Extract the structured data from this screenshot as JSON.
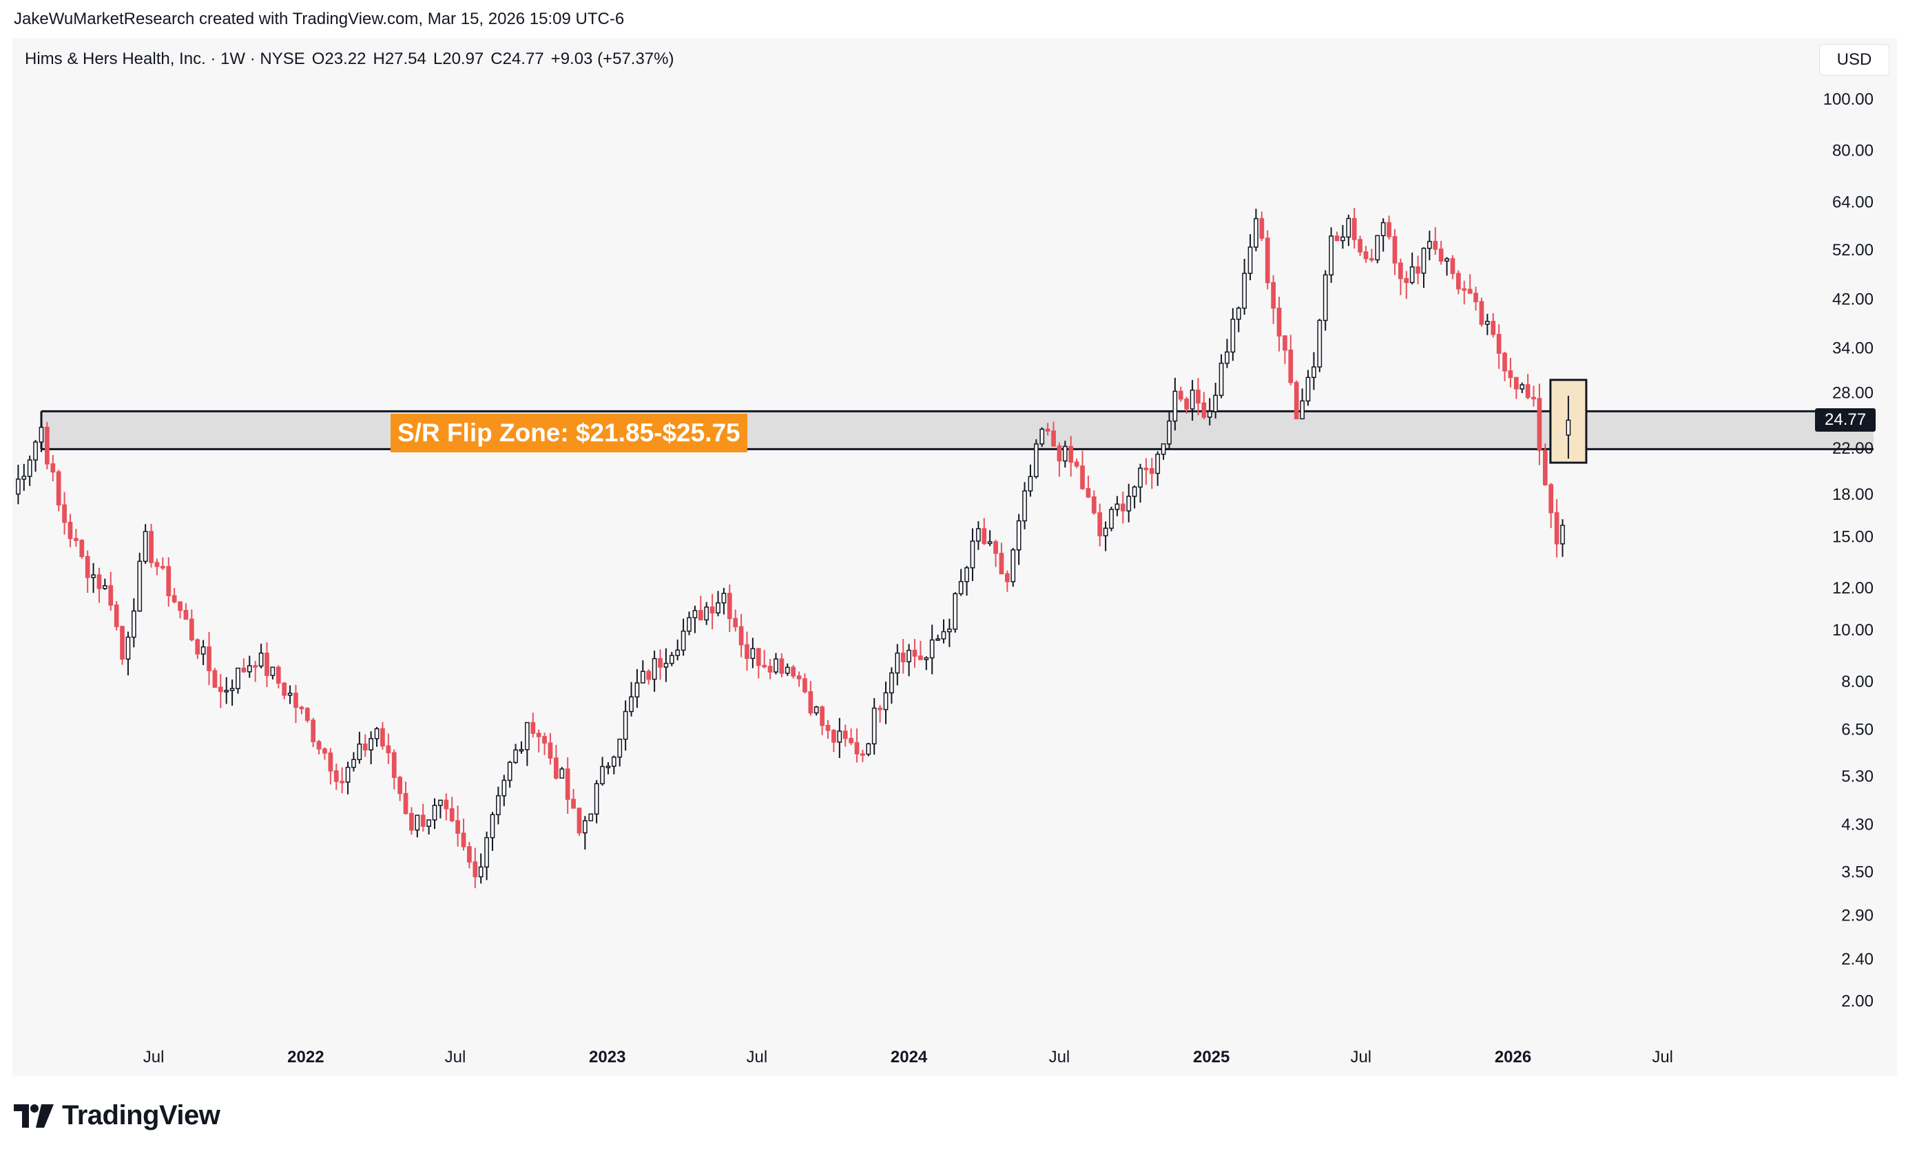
{
  "attribution": "JakeWuMarketResearch created with TradingView.com, Mar 15, 2026 15:09 UTC-6",
  "legend": {
    "symbol": "Hims & Hers Health, Inc. · 1W · NYSE",
    "open": "O23.22",
    "high": "H27.54",
    "low": "L20.97",
    "close": "C24.77",
    "change": "+9.03 (+57.37%)"
  },
  "currency": "USD",
  "zone_label": "S/R Flip Zone: $21.85-$25.75",
  "last_price_label": "24.77",
  "brand": "TradingView",
  "colors": {
    "up": "#ffffff",
    "down": "#e8505b",
    "wick": "#131722",
    "zone": "#d9d9d9",
    "zone_label_bg": "#f7931a",
    "highlight": "#f7e4c4"
  },
  "chart_data": {
    "type": "candlestick",
    "interval": "1W",
    "y_scale": "log",
    "y_ticks": [
      100,
      80,
      64,
      52,
      42,
      34,
      28,
      22,
      18,
      15,
      12,
      10,
      8,
      6.5,
      5.3,
      4.3,
      3.5,
      2.9,
      2.4,
      2.0
    ],
    "y_tick_labels": [
      "100.00",
      "80.00",
      "64.00",
      "52.00",
      "42.00",
      "34.00",
      "28.00",
      "22.00",
      "18.00",
      "15.00",
      "12.00",
      "10.00",
      "8.00",
      "6.50",
      "5.30",
      "4.30",
      "3.50",
      "2.90",
      "2.40",
      "2.00"
    ],
    "x_ticks": [
      {
        "label": "Jul",
        "date": "2021-07-01",
        "bold": false
      },
      {
        "label": "2022",
        "date": "2022-01-01",
        "bold": true
      },
      {
        "label": "Jul",
        "date": "2022-07-01",
        "bold": false
      },
      {
        "label": "2023",
        "date": "2023-01-01",
        "bold": true
      },
      {
        "label": "Jul",
        "date": "2023-07-01",
        "bold": false
      },
      {
        "label": "2024",
        "date": "2024-01-01",
        "bold": true
      },
      {
        "label": "Jul",
        "date": "2024-07-01",
        "bold": false
      },
      {
        "label": "2025",
        "date": "2025-01-01",
        "bold": true
      },
      {
        "label": "Jul",
        "date": "2025-07-01",
        "bold": false
      },
      {
        "label": "2026",
        "date": "2026-01-01",
        "bold": true
      },
      {
        "label": "Jul",
        "date": "2026-07-01",
        "bold": false
      }
    ],
    "x_range": [
      "2021-01-11",
      "2026-12-20"
    ],
    "zone": {
      "low": 21.85,
      "high": 25.75,
      "start": "2021-02-15"
    },
    "highlight": {
      "date": "2026-03-09",
      "low": 20.6,
      "high": 29.5
    },
    "last_price": 24.77,
    "anchors": [
      [
        "2021-01-11",
        18.0
      ],
      [
        "2021-02-15",
        24.0
      ],
      [
        "2021-03-08",
        17.0
      ],
      [
        "2021-04-05",
        13.5
      ],
      [
        "2021-05-10",
        11.5
      ],
      [
        "2021-05-24",
        8.8
      ],
      [
        "2021-06-21",
        14.6
      ],
      [
        "2021-08-02",
        10.8
      ],
      [
        "2021-09-20",
        7.6
      ],
      [
        "2021-11-01",
        8.9
      ],
      [
        "2021-12-13",
        7.5
      ],
      [
        "2022-02-14",
        5.2
      ],
      [
        "2022-03-28",
        6.5
      ],
      [
        "2022-05-09",
        4.3
      ],
      [
        "2022-06-13",
        4.6
      ],
      [
        "2022-07-11",
        3.8
      ],
      [
        "2022-07-25",
        3.4
      ],
      [
        "2022-08-22",
        5.0
      ],
      [
        "2022-10-03",
        6.7
      ],
      [
        "2022-11-07",
        5.2
      ],
      [
        "2022-11-28",
        4.1
      ],
      [
        "2023-02-06",
        7.8
      ],
      [
        "2023-04-24",
        10.8
      ],
      [
        "2023-05-22",
        11.7
      ],
      [
        "2023-06-19",
        9.0
      ],
      [
        "2023-08-14",
        8.5
      ],
      [
        "2023-09-25",
        6.3
      ],
      [
        "2023-11-06",
        5.9
      ],
      [
        "2023-12-18",
        9.2
      ],
      [
        "2024-01-22",
        8.8
      ],
      [
        "2024-02-19",
        10.4
      ],
      [
        "2024-03-25",
        15.2
      ],
      [
        "2024-04-29",
        12.3
      ],
      [
        "2024-05-20",
        17.5
      ],
      [
        "2024-06-10",
        23.5
      ],
      [
        "2024-07-22",
        20.0
      ],
      [
        "2024-08-19",
        15.0
      ],
      [
        "2024-09-16",
        17.5
      ],
      [
        "2024-10-28",
        21.0
      ],
      [
        "2024-11-18",
        28.0
      ],
      [
        "2024-12-30",
        26.0
      ],
      [
        "2025-02-10",
        45.0
      ],
      [
        "2025-02-24",
        60.0
      ],
      [
        "2025-03-24",
        36.0
      ],
      [
        "2025-04-14",
        26.0
      ],
      [
        "2025-05-05",
        32.0
      ],
      [
        "2025-05-26",
        56.0
      ],
      [
        "2025-06-16",
        58.0
      ],
      [
        "2025-07-07",
        48.0
      ],
      [
        "2025-07-28",
        60.0
      ],
      [
        "2025-08-25",
        44.0
      ],
      [
        "2025-09-22",
        55.0
      ],
      [
        "2025-10-27",
        45.0
      ],
      [
        "2025-11-24",
        38.0
      ],
      [
        "2025-12-22",
        32.0
      ],
      [
        "2026-01-26",
        26.0
      ],
      [
        "2026-02-09",
        19.0
      ],
      [
        "2026-02-23",
        15.0
      ],
      [
        "2026-03-02",
        15.7
      ]
    ],
    "last_candle": {
      "date": "2026-03-09",
      "open": 23.22,
      "high": 27.54,
      "low": 20.97,
      "close": 24.77
    }
  }
}
